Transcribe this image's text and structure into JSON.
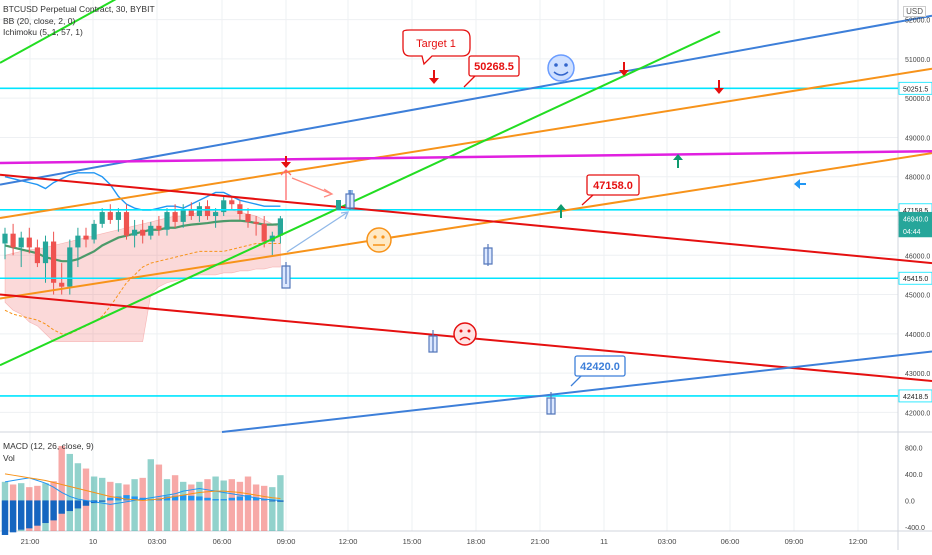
{
  "legend": {
    "symbol": "BTCUSD Perpetual Contract, 30, BYBIT",
    "bb": "BB (20, close, 2, 0)",
    "ichimoku": "Ichimoku (5, 1, 57, 1)"
  },
  "macd_legend": {
    "macd": "MACD (12, 26, close, 9)",
    "vol": "Vol"
  },
  "currency": "USD",
  "colors": {
    "up": "#26a69a",
    "down": "#ef5350",
    "bb": "#2196f3",
    "horizontal_levels": "#00e5ff",
    "trend_blue": "#3d7fd9",
    "trend_orange": "#f7931a",
    "trend_green": "#22dd22",
    "trend_red": "#e51010",
    "resistance_magenta": "#e020e0",
    "grid": "#eef0f3"
  },
  "chart_data": [
    {
      "type": "candlestick",
      "title": "BTCUSD Perpetual Contract, 30, BYBIT",
      "ylim": [
        41500,
        52500
      ],
      "y_ticks": [
        {
          "value": 52000,
          "label": "52000.0"
        },
        {
          "value": 51000,
          "label": "51000.0"
        },
        {
          "value": 50000,
          "label": "50000.0"
        },
        {
          "value": 49000,
          "label": "49000.0"
        },
        {
          "value": 48000,
          "label": "48000.0"
        },
        {
          "value": 47000,
          "label": "47000.0"
        },
        {
          "value": 46000,
          "label": "46000.0"
        },
        {
          "value": 45000,
          "label": "45000.0"
        },
        {
          "value": 44000,
          "label": "44000.0"
        },
        {
          "value": 43000,
          "label": "43000.0"
        },
        {
          "value": 42000,
          "label": "42000.0"
        }
      ],
      "x_ticks": [
        "21:00",
        "10",
        "03:00",
        "06:00",
        "09:00",
        "12:00",
        "15:00",
        "18:00",
        "21:00",
        "11",
        "03:00",
        "06:00",
        "09:00",
        "12:00"
      ],
      "price_labels": [
        {
          "value": 50251.5,
          "label": "50251.5",
          "style": "level"
        },
        {
          "value": 47158.5,
          "label": "47158.5",
          "style": "level"
        },
        {
          "value": 46940,
          "label": "46940.0",
          "style": "current"
        },
        {
          "value": 46800,
          "label": "04:44",
          "style": "countdown"
        },
        {
          "value": 45415,
          "label": "45415.0",
          "style": "level"
        },
        {
          "value": 42418.5,
          "label": "42418.5",
          "style": "level"
        }
      ],
      "horizontal_levels": [
        50251.5,
        47158.5,
        45415.0,
        42418.5
      ],
      "annotations": [
        {
          "text": "Target 1",
          "color": "red"
        },
        {
          "text": "50268.5",
          "color": "red"
        },
        {
          "text": "47158.0",
          "color": "red"
        },
        {
          "text": "42420.0",
          "color": "blue"
        }
      ],
      "candles": [
        {
          "o": 46300,
          "h": 46700,
          "l": 45900,
          "c": 46550
        },
        {
          "o": 46550,
          "h": 46800,
          "l": 46000,
          "c": 46200
        },
        {
          "o": 46200,
          "h": 46600,
          "l": 45700,
          "c": 46450
        },
        {
          "o": 46450,
          "h": 46700,
          "l": 46050,
          "c": 46200
        },
        {
          "o": 46200,
          "h": 46400,
          "l": 45700,
          "c": 45800
        },
        {
          "o": 45800,
          "h": 46500,
          "l": 45300,
          "c": 46350
        },
        {
          "o": 46350,
          "h": 46600,
          "l": 45000,
          "c": 45300
        },
        {
          "o": 45300,
          "h": 45800,
          "l": 45000,
          "c": 45200
        },
        {
          "o": 45200,
          "h": 46400,
          "l": 45000,
          "c": 46200
        },
        {
          "o": 46200,
          "h": 46700,
          "l": 45700,
          "c": 46500
        },
        {
          "o": 46500,
          "h": 46700,
          "l": 46200,
          "c": 46400
        },
        {
          "o": 46400,
          "h": 46900,
          "l": 46300,
          "c": 46800
        },
        {
          "o": 46800,
          "h": 47200,
          "l": 46700,
          "c": 47100
        },
        {
          "o": 47100,
          "h": 47300,
          "l": 46800,
          "c": 46900
        },
        {
          "o": 46900,
          "h": 47200,
          "l": 46600,
          "c": 47100
        },
        {
          "o": 47100,
          "h": 47300,
          "l": 46400,
          "c": 46500
        },
        {
          "o": 46500,
          "h": 46900,
          "l": 46200,
          "c": 46650
        },
        {
          "o": 46650,
          "h": 46900,
          "l": 46300,
          "c": 46500
        },
        {
          "o": 46500,
          "h": 46850,
          "l": 46400,
          "c": 46750
        },
        {
          "o": 46750,
          "h": 47000,
          "l": 46500,
          "c": 46650
        },
        {
          "o": 46650,
          "h": 47200,
          "l": 46500,
          "c": 47100
        },
        {
          "o": 47100,
          "h": 47300,
          "l": 46700,
          "c": 46850
        },
        {
          "o": 46850,
          "h": 47300,
          "l": 46700,
          "c": 47150
        },
        {
          "o": 47150,
          "h": 47350,
          "l": 46900,
          "c": 47000
        },
        {
          "o": 47000,
          "h": 47350,
          "l": 46850,
          "c": 47250
        },
        {
          "o": 47250,
          "h": 47400,
          "l": 46900,
          "c": 47000
        },
        {
          "o": 47000,
          "h": 47200,
          "l": 46700,
          "c": 47100
        },
        {
          "o": 47100,
          "h": 47500,
          "l": 47000,
          "c": 47400
        },
        {
          "o": 47400,
          "h": 47500,
          "l": 47150,
          "c": 47300
        },
        {
          "o": 47300,
          "h": 47400,
          "l": 46900,
          "c": 47050
        },
        {
          "o": 47050,
          "h": 47200,
          "l": 46700,
          "c": 46850
        },
        {
          "o": 46850,
          "h": 47000,
          "l": 46500,
          "c": 46800
        },
        {
          "o": 46800,
          "h": 47000,
          "l": 46200,
          "c": 46350
        },
        {
          "o": 46350,
          "h": 46600,
          "l": 46000,
          "c": 46500
        },
        {
          "o": 46500,
          "h": 47000,
          "l": 46300,
          "c": 46940
        }
      ],
      "bb_upper": [
        48000,
        47950,
        47900,
        47850,
        47800,
        47700,
        47850,
        47950,
        48050,
        48100,
        48100,
        48100,
        48000,
        47800,
        47500,
        47300,
        47200,
        47150,
        47150,
        47200,
        47250,
        47250,
        47200,
        47300,
        47400,
        47500,
        47600,
        47600,
        47500,
        47400,
        47350,
        47300,
        47250,
        47250,
        47250
      ],
      "bb_middle": [
        46250,
        46200,
        46150,
        46100,
        46050,
        45950,
        45900,
        45850,
        45850,
        45900,
        46000,
        46100,
        46250,
        46350,
        46450,
        46500,
        46550,
        46600,
        46650,
        46650,
        46700,
        46700,
        46750,
        46780,
        46800,
        46820,
        46850,
        46870,
        46880,
        46880,
        46860,
        46820,
        46780,
        46780,
        46790
      ],
      "bb_lower": [
        44600,
        44500,
        44450,
        44400,
        44350,
        44250,
        44100,
        44000,
        44000,
        44100,
        44200,
        44300,
        44450,
        44700,
        45000,
        45300,
        45500,
        45700,
        45800,
        45850,
        45900,
        45950,
        46000,
        46050,
        46100,
        46100,
        46100,
        46100,
        46150,
        46200,
        46250,
        46300,
        46300,
        46300,
        46300
      ],
      "cloud_top": [
        46000,
        46050,
        46100,
        46150,
        46150,
        46200,
        46250,
        46300,
        46350,
        46400,
        46450,
        46500,
        46550,
        46600,
        46650,
        46700,
        46750,
        46800,
        46850,
        46900,
        46950,
        47000,
        47000,
        47050,
        47100,
        47150,
        47150,
        47150,
        47150,
        47100,
        47050,
        47000,
        46900,
        46800,
        46700
      ],
      "cloud_bottom": [
        44800,
        44600,
        44500,
        44300,
        44200,
        44000,
        43800,
        43800,
        43800,
        43800,
        43800,
        43800,
        43800,
        43800,
        43800,
        43800,
        43800,
        43800,
        45000,
        45200,
        45300,
        45350,
        45400,
        45450,
        45500,
        45500,
        45500,
        45550,
        45550,
        45600,
        45600,
        45650,
        45650,
        45700,
        45700
      ],
      "trend_lines": [
        {
          "color": "trend_blue",
          "x0": 0,
          "y0": 47800,
          "x1": 932,
          "y1": 52100
        },
        {
          "color": "trend_orange",
          "x0": 0,
          "y0": 46950,
          "x1": 932,
          "y1": 50750
        },
        {
          "color": "trend_orange",
          "x0": 0,
          "y0": 44900,
          "x1": 932,
          "y1": 48600
        },
        {
          "color": "trend_green",
          "x0": 0,
          "y0": 43200,
          "x1": 720,
          "y1": 51700
        },
        {
          "color": "trend_green",
          "x0": 0,
          "y0": 50900,
          "x1": 150,
          "y1": 53000
        },
        {
          "color": "trend_red",
          "x0": 0,
          "y0": 48050,
          "x1": 932,
          "y1": 45800
        },
        {
          "color": "trend_red",
          "x0": 0,
          "y0": 45000,
          "x1": 932,
          "y1": 42800
        },
        {
          "color": "trend_blue",
          "x0": 222,
          "y0": 41500,
          "x1": 932,
          "y1": 43550
        },
        {
          "color": "resistance_magenta",
          "x0": 0,
          "y0": 48350,
          "x1": 932,
          "y1": 48650
        }
      ]
    },
    {
      "type": "bar",
      "title": "MACD (12, 26, close, 9)",
      "ylim": [
        -460,
        1000
      ],
      "y_ticks": [
        {
          "value": 800,
          "label": "800.0"
        },
        {
          "value": 400,
          "label": "400.0"
        },
        {
          "value": 0,
          "label": "0.0"
        },
        {
          "value": -400,
          "label": "-400.0"
        }
      ],
      "volume": [
        280,
        240,
        260,
        200,
        220,
        260,
        290,
        820,
        700,
        560,
        480,
        360,
        340,
        280,
        260,
        240,
        320,
        340,
        620,
        540,
        320,
        380,
        280,
        240,
        280,
        320,
        360,
        300,
        320,
        280,
        360,
        240,
        220,
        200,
        380
      ],
      "macd_hist": [
        -520,
        -480,
        -440,
        -420,
        -380,
        -340,
        -300,
        -200,
        -160,
        -120,
        -80,
        -40,
        -20,
        40,
        60,
        80,
        60,
        40,
        20,
        30,
        60,
        70,
        80,
        70,
        60,
        40,
        20,
        20,
        40,
        60,
        80,
        40,
        20,
        -10,
        -20
      ],
      "macd_line": [
        280,
        300,
        320,
        340,
        300,
        260,
        200,
        120,
        60,
        20,
        0,
        -20,
        -40,
        -60,
        -40,
        -20,
        0,
        20,
        40,
        60,
        80,
        100,
        140,
        160,
        180,
        160,
        140,
        120,
        100,
        80,
        60,
        40,
        20,
        10,
        0
      ],
      "signal_line": [
        400,
        380,
        360,
        340,
        320,
        300,
        270,
        240,
        210,
        180,
        150,
        120,
        90,
        60,
        40,
        20,
        10,
        0,
        10,
        20,
        40,
        60,
        80,
        100,
        120,
        130,
        140,
        140,
        130,
        120,
        100,
        80,
        60,
        40,
        30
      ]
    }
  ]
}
